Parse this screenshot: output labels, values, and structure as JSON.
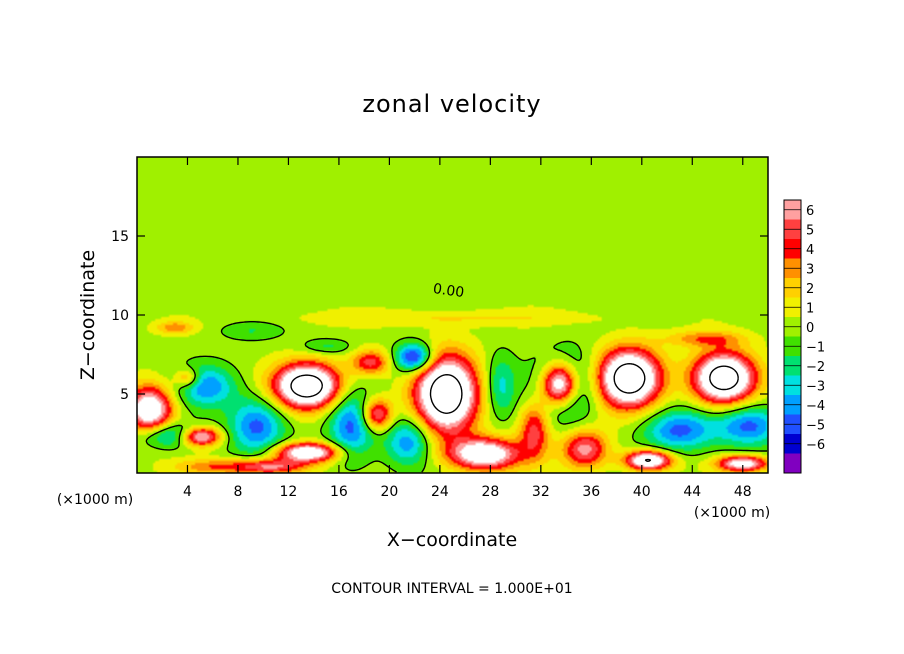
{
  "chart_data": {
    "type": "heatmap",
    "title": "zonal velocity",
    "xlabel": "X−coordinate",
    "ylabel": "Z−coordinate",
    "x_unit_left": "(×1000 m)",
    "x_unit_right": "(×1000 m)",
    "footer": "CONTOUR INTERVAL = 1.000E+01",
    "contour_label": "0.00",
    "xlim": [
      0,
      50
    ],
    "ylim": [
      0,
      20
    ],
    "x_ticks": [
      4,
      8,
      12,
      16,
      20,
      24,
      28,
      32,
      36,
      40,
      44,
      48
    ],
    "y_ticks": [
      5,
      10,
      15
    ],
    "colorbar": {
      "ticks": [
        6,
        5,
        4,
        3,
        2,
        1,
        0,
        -1,
        -2,
        -3,
        -4,
        -5,
        -6
      ],
      "colors": [
        "#ffa0a0",
        "#ff4040",
        "#ff0000",
        "#ff9000",
        "#ffd000",
        "#f0f000",
        "#a0f000",
        "#40e000",
        "#00e070",
        "#00e0e0",
        "#00a0ff",
        "#2050ff",
        "#0000d0",
        "#8000c0"
      ]
    },
    "background_value": 0.6,
    "upper_value": 0.6,
    "blobs": [
      {
        "x": 1.0,
        "z": 4.0,
        "v": 9.0,
        "sx": 1.8,
        "sz": 1.5
      },
      {
        "x": 2.5,
        "z": 2.4,
        "v": -4.5,
        "sx": 2.5,
        "sz": 0.8
      },
      {
        "x": 5.0,
        "z": 2.3,
        "v": 8.0,
        "sx": 1.6,
        "sz": 0.6
      },
      {
        "x": 5.5,
        "z": 5.5,
        "v": -4.5,
        "sx": 2.2,
        "sz": 1.3
      },
      {
        "x": 4.0,
        "z": 6.0,
        "v": 4.0,
        "sx": 1.0,
        "sz": 0.6
      },
      {
        "x": 6.0,
        "z": 0.4,
        "v": 3.0,
        "sx": 3.0,
        "sz": 0.5
      },
      {
        "x": 9.5,
        "z": 3.0,
        "v": -5.0,
        "sx": 2.2,
        "sz": 1.8
      },
      {
        "x": 13.5,
        "z": 5.5,
        "v": 12.0,
        "sx": 2.6,
        "sz": 1.4
      },
      {
        "x": 13.5,
        "z": 1.3,
        "v": 9.0,
        "sx": 2.5,
        "sz": 0.6
      },
      {
        "x": 10.5,
        "z": 0.4,
        "v": 6.0,
        "sx": 2.8,
        "sz": 0.5
      },
      {
        "x": 17.0,
        "z": 3.0,
        "v": -5.0,
        "sx": 1.8,
        "sz": 2.2
      },
      {
        "x": 19.0,
        "z": 3.7,
        "v": 6.5,
        "sx": 1.2,
        "sz": 1.0
      },
      {
        "x": 18.5,
        "z": 7.0,
        "v": 5.0,
        "sx": 1.5,
        "sz": 0.8
      },
      {
        "x": 22.0,
        "z": 7.3,
        "v": -7.0,
        "sx": 1.5,
        "sz": 0.9
      },
      {
        "x": 21.5,
        "z": 2.0,
        "v": -4.5,
        "sx": 1.8,
        "sz": 1.5
      },
      {
        "x": 24.5,
        "z": 5.0,
        "v": 12.0,
        "sx": 2.4,
        "sz": 2.4
      },
      {
        "x": 27.5,
        "z": 1.2,
        "v": 9.0,
        "sx": 2.8,
        "sz": 1.0
      },
      {
        "x": 28.8,
        "z": 5.5,
        "v": -3.0,
        "sx": 1.2,
        "sz": 2.0
      },
      {
        "x": 31.5,
        "z": 2.8,
        "v": 5.0,
        "sx": 1.2,
        "sz": 1.8
      },
      {
        "x": 33.8,
        "z": 5.5,
        "v": -7.0,
        "sx": 2.2,
        "sz": 2.0
      },
      {
        "x": 33.5,
        "z": 5.6,
        "v": 14.0,
        "sx": 1.5,
        "sz": 1.4
      },
      {
        "x": 35.5,
        "z": 1.5,
        "v": 6.0,
        "sx": 1.8,
        "sz": 1.2
      },
      {
        "x": 39.0,
        "z": 6.0,
        "v": 12.0,
        "sx": 2.4,
        "sz": 1.8
      },
      {
        "x": 40.5,
        "z": 0.8,
        "v": 10.0,
        "sx": 1.8,
        "sz": 0.6
      },
      {
        "x": 43.0,
        "z": 2.7,
        "v": -5.0,
        "sx": 2.8,
        "sz": 1.3
      },
      {
        "x": 46.5,
        "z": 6.0,
        "v": 12.0,
        "sx": 2.4,
        "sz": 1.6
      },
      {
        "x": 48.5,
        "z": 3.0,
        "v": -5.0,
        "sx": 2.5,
        "sz": 1.3
      },
      {
        "x": 48.0,
        "z": 0.6,
        "v": 8.0,
        "sx": 2.0,
        "sz": 0.5
      },
      {
        "x": 45.0,
        "z": 8.5,
        "v": 3.0,
        "sx": 3.0,
        "sz": 0.5
      },
      {
        "x": 25.0,
        "z": 9.8,
        "v": 1.5,
        "sx": 12.0,
        "sz": 0.5
      },
      {
        "x": 3.0,
        "z": 9.2,
        "v": 3.0,
        "sx": 1.5,
        "sz": 0.4
      },
      {
        "x": 9.0,
        "z": 9.0,
        "v": -1.5,
        "sx": 2.5,
        "sz": 0.6
      },
      {
        "x": 15.0,
        "z": 8.0,
        "v": -2.0,
        "sx": 2.0,
        "sz": 0.5
      }
    ]
  }
}
